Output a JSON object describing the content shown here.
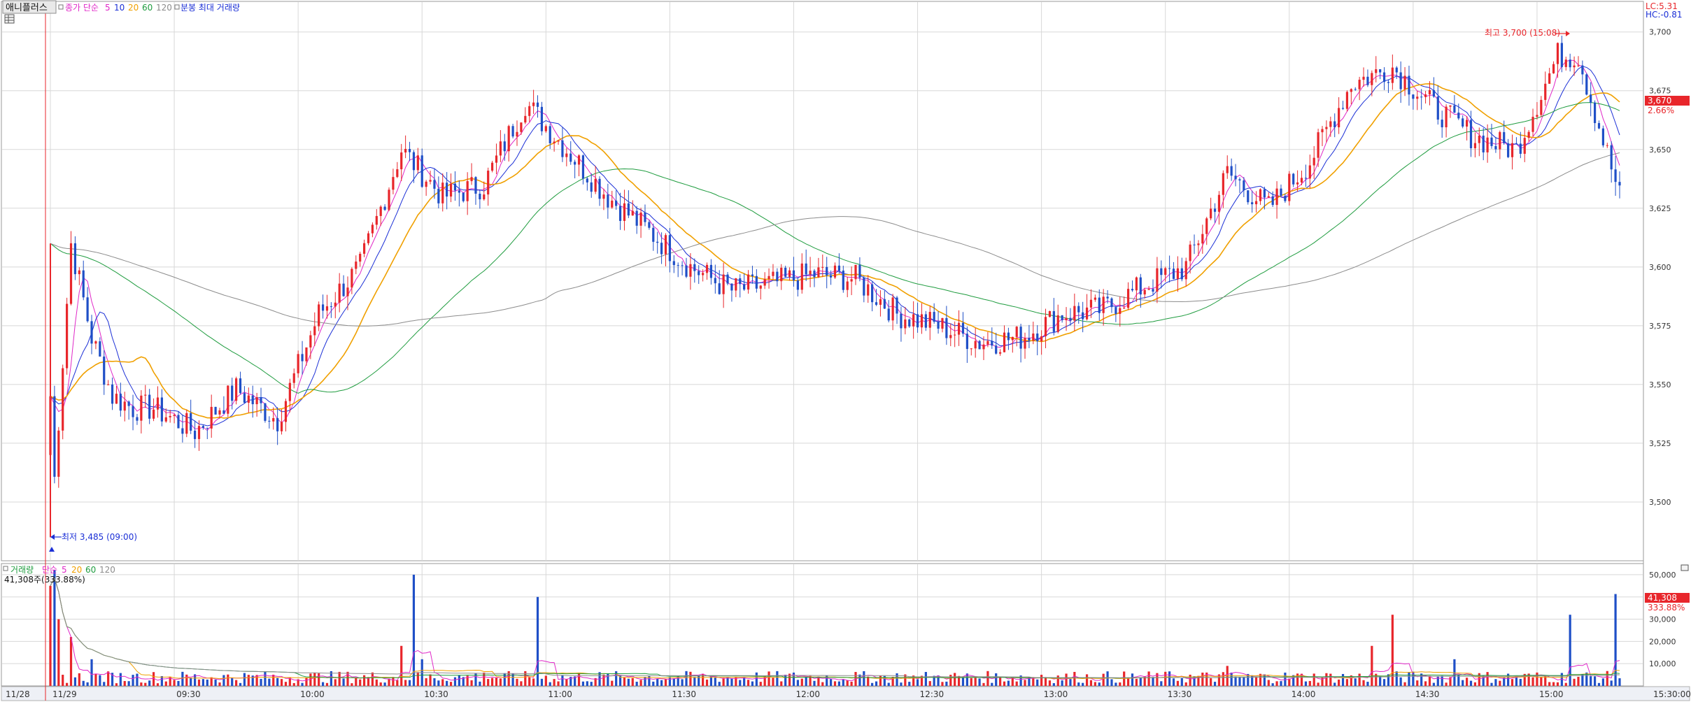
{
  "header": {
    "stock_name": "애니플러스",
    "ma_label": "종가 단순",
    "ma_periods": [
      "5",
      "10",
      "20",
      "60",
      "120"
    ],
    "volume_note": "분봉 최대 거래량",
    "lc_text": "LC:5.31",
    "hc_text": "HC:-0.81"
  },
  "volume_header": {
    "label": "거래량",
    "ma_label": "단순",
    "ma_periods": [
      "5",
      "20",
      "60",
      "120"
    ],
    "current_text": "41,308주(333.88%)"
  },
  "colors": {
    "up": "#e8262b",
    "down": "#1f4fc7",
    "ma5": "#e028c8",
    "ma10": "#1b2fd6",
    "ma20": "#f0a000",
    "ma60": "#1f9c3f",
    "ma120": "#8c8c8c",
    "grid": "#d8d8d8",
    "axis_text": "#333333"
  },
  "chart_data": [
    {
      "type": "candlestick",
      "title": "애니플러스",
      "session_dates": [
        "11/28",
        "11/29"
      ],
      "x_tick_labels": [
        "11/28",
        "11/29",
        "09:30",
        "10:00",
        "10:30",
        "11:00",
        "11:30",
        "12:00",
        "12:30",
        "13:00",
        "13:30",
        "14:00",
        "14:30",
        "15:00",
        "15:30:00"
      ],
      "y_tick_labels": [
        "3,500",
        "3,525",
        "3,550",
        "3,575",
        "3,600",
        "3,625",
        "3,650",
        "3,675",
        "3,700"
      ],
      "ylim": [
        3475,
        3713
      ],
      "grid": true,
      "moving_averages": [
        "5",
        "10",
        "20",
        "60",
        "120"
      ],
      "last_price": {
        "value": 3670,
        "text": "3,670",
        "change_text": "2.66%"
      },
      "annotations": [
        {
          "text": "최고 3,700 (15:08)",
          "value": 3700,
          "time": "15:08"
        },
        {
          "text": "최저 3,485 (09:00)",
          "value": 3485,
          "time": "09:00"
        }
      ],
      "price_path": [
        {
          "time": "09:00",
          "price": 3485
        },
        {
          "time": "09:05",
          "price": 3610
        },
        {
          "time": "09:10",
          "price": 3570
        },
        {
          "time": "09:15",
          "price": 3545
        },
        {
          "time": "09:20",
          "price": 3540
        },
        {
          "time": "09:25",
          "price": 3540
        },
        {
          "time": "09:35",
          "price": 3530
        },
        {
          "time": "09:45",
          "price": 3548
        },
        {
          "time": "09:55",
          "price": 3535
        },
        {
          "time": "10:05",
          "price": 3580
        },
        {
          "time": "10:15",
          "price": 3600
        },
        {
          "time": "10:25",
          "price": 3650
        },
        {
          "time": "10:35",
          "price": 3630
        },
        {
          "time": "10:45",
          "price": 3635
        },
        {
          "time": "10:55",
          "price": 3670
        },
        {
          "time": "11:05",
          "price": 3650
        },
        {
          "time": "11:15",
          "price": 3630
        },
        {
          "time": "11:25",
          "price": 3615
        },
        {
          "time": "11:35",
          "price": 3600
        },
        {
          "time": "11:45",
          "price": 3590
        },
        {
          "time": "11:55",
          "price": 3593
        },
        {
          "time": "12:05",
          "price": 3597
        },
        {
          "time": "12:15",
          "price": 3595
        },
        {
          "time": "12:25",
          "price": 3580
        },
        {
          "time": "12:35",
          "price": 3575
        },
        {
          "time": "12:45",
          "price": 3568
        },
        {
          "time": "12:55",
          "price": 3570
        },
        {
          "time": "13:05",
          "price": 3580
        },
        {
          "time": "13:15",
          "price": 3582
        },
        {
          "time": "13:25",
          "price": 3592
        },
        {
          "time": "13:35",
          "price": 3600
        },
        {
          "time": "13:45",
          "price": 3640
        },
        {
          "time": "13:55",
          "price": 3625
        },
        {
          "time": "14:05",
          "price": 3645
        },
        {
          "time": "14:15",
          "price": 3678
        },
        {
          "time": "14:25",
          "price": 3685
        },
        {
          "time": "14:35",
          "price": 3668
        },
        {
          "time": "14:45",
          "price": 3655
        },
        {
          "time": "14:55",
          "price": 3650
        },
        {
          "time": "15:05",
          "price": 3690
        },
        {
          "time": "15:10",
          "price": 3690
        },
        {
          "time": "15:15",
          "price": 3660
        },
        {
          "time": "15:20",
          "price": 3630
        }
      ]
    },
    {
      "type": "bar",
      "title": "거래량",
      "y_tick_labels": [
        "10,000",
        "20,000",
        "30,000",
        "40,000",
        "50,000"
      ],
      "ylim": [
        0,
        55000
      ],
      "last_volume": {
        "text": "41,308",
        "ratio_text": "333.88%"
      },
      "volume_path": [
        {
          "time": "09:00",
          "volume": 45000
        },
        {
          "time": "09:01",
          "volume": 52000
        },
        {
          "time": "09:02",
          "volume": 30000
        },
        {
          "time": "09:05",
          "volume": 22000
        },
        {
          "time": "09:10",
          "volume": 12000
        },
        {
          "time": "09:20",
          "volume": 5000
        },
        {
          "time": "10:00",
          "volume": 3000
        },
        {
          "time": "10:25",
          "volume": 18000
        },
        {
          "time": "10:28",
          "volume": 50000
        },
        {
          "time": "10:30",
          "volume": 12000
        },
        {
          "time": "10:45",
          "volume": 6000
        },
        {
          "time": "10:58",
          "volume": 40000
        },
        {
          "time": "11:30",
          "volume": 4000
        },
        {
          "time": "12:30",
          "volume": 3000
        },
        {
          "time": "13:00",
          "volume": 5000
        },
        {
          "time": "13:45",
          "volume": 9000
        },
        {
          "time": "14:20",
          "volume": 18000
        },
        {
          "time": "14:25",
          "volume": 32000
        },
        {
          "time": "14:40",
          "volume": 12000
        },
        {
          "time": "15:08",
          "volume": 32000
        },
        {
          "time": "15:19",
          "volume": 41308
        }
      ]
    }
  ]
}
